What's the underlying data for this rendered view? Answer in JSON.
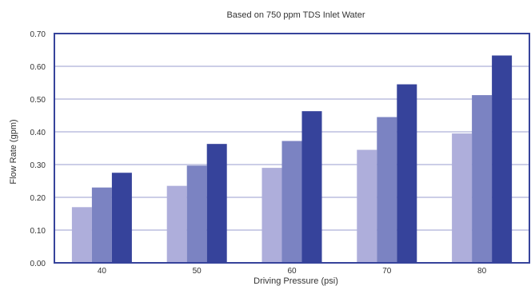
{
  "chart_data": {
    "type": "bar",
    "title": "Based on 750 ppm TDS Inlet Water",
    "xlabel": "Driving Pressure (psi)",
    "ylabel": "Flow Rate (gpm)",
    "categories": [
      "40",
      "50",
      "60",
      "70",
      "80"
    ],
    "series": [
      {
        "values": [
          0.17,
          0.235,
          0.29,
          0.345,
          0.395
        ],
        "color": "#aeaedb"
      },
      {
        "values": [
          0.23,
          0.297,
          0.372,
          0.445,
          0.512
        ],
        "color": "#7b83c2"
      },
      {
        "values": [
          0.275,
          0.363,
          0.463,
          0.545,
          0.633
        ],
        "color": "#36439b"
      }
    ],
    "yticks": [
      "0.00",
      "0.10",
      "0.20",
      "0.30",
      "0.40",
      "0.50",
      "0.60",
      "0.70"
    ],
    "ylim": [
      0,
      0.7
    ],
    "grid": true,
    "frame_color": "#36439b",
    "grid_color": "#9a9ccf"
  }
}
